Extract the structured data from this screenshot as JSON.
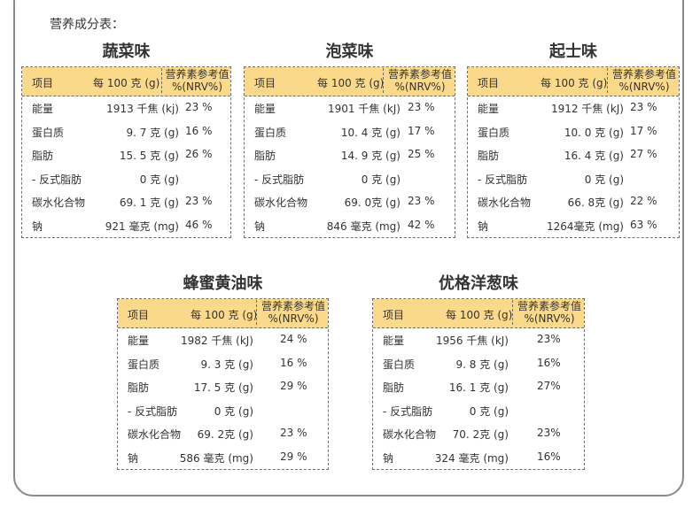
{
  "heading": "营养成分表：",
  "header": {
    "item": "项目",
    "per": "每 100 克 (g)",
    "nrv_line1": "营养素参考值",
    "nrv_line2": "%(NRV%)"
  },
  "panels": [
    {
      "title": "蔬菜味",
      "rows": [
        {
          "name": "能量",
          "value": "1913 千焦 (kj)",
          "nrv": "23 %"
        },
        {
          "name": "蛋白质",
          "value": "9. 7 克 (g)",
          "nrv": "16 %"
        },
        {
          "name": "脂肪",
          "value": "15. 5 克 (g)",
          "nrv": "26 %"
        },
        {
          "name": "- 反式脂肪",
          "value": "0 克 (g)",
          "nrv": ""
        },
        {
          "name": "碳水化合物",
          "value": "69. 1 克 (g)",
          "nrv": "23 %"
        },
        {
          "name": "钠",
          "value": "921 毫克 (mg)",
          "nrv": "46 %"
        }
      ]
    },
    {
      "title": "泡菜味",
      "rows": [
        {
          "name": "能量",
          "value": "1901 千焦 (kJ)",
          "nrv": "23 %"
        },
        {
          "name": "蛋白质",
          "value": "10. 4 克 (g)",
          "nrv": "17 %"
        },
        {
          "name": "脂肪",
          "value": "14. 9 克 (g)",
          "nrv": "25 %"
        },
        {
          "name": "- 反式脂肪",
          "value": "0 克 (g)",
          "nrv": ""
        },
        {
          "name": "碳水化合物",
          "value": "69. 0克 (g)",
          "nrv": "23 %"
        },
        {
          "name": "钠",
          "value": "846 毫克 (mg)",
          "nrv": "42 %"
        }
      ]
    },
    {
      "title": "起士味",
      "rows": [
        {
          "name": "能量",
          "value": "1912 千焦 (kJ)",
          "nrv": "23 %"
        },
        {
          "name": "蛋白质",
          "value": "10. 0 克 (g)",
          "nrv": "17 %"
        },
        {
          "name": "脂肪",
          "value": "16. 4 克 (g)",
          "nrv": "27 %"
        },
        {
          "name": "- 反式脂肪",
          "value": "0 克 (g)",
          "nrv": ""
        },
        {
          "name": "碳水化合物",
          "value": "66. 8克 (g)",
          "nrv": "22 %"
        },
        {
          "name": "钠",
          "value": "1264毫克 (mg)",
          "nrv": "63 %"
        }
      ]
    },
    {
      "title": "蜂蜜黄油味",
      "rows": [
        {
          "name": "能量",
          "value": "1982 千焦 (kJ)",
          "nrv": "24 %"
        },
        {
          "name": "蛋白质",
          "value": "9. 3 克 (g)",
          "nrv": "16 %"
        },
        {
          "name": "脂肪",
          "value": "17. 5 克 (g)",
          "nrv": "29 %"
        },
        {
          "name": "- 反式脂肪",
          "value": "0 克 (g)",
          "nrv": ""
        },
        {
          "name": "碳水化合物",
          "value": "69. 2克 (g)",
          "nrv": "23 %"
        },
        {
          "name": "钠",
          "value": "586 毫克 (mg)",
          "nrv": "29 %"
        }
      ]
    },
    {
      "title": "优格洋葱味",
      "rows": [
        {
          "name": "能量",
          "value": "1956 千焦 (kJ)",
          "nrv": "23%"
        },
        {
          "name": "蛋白质",
          "value": "9. 8 克 (g)",
          "nrv": "16%"
        },
        {
          "name": "脂肪",
          "value": "16. 1 克 (g)",
          "nrv": "27%"
        },
        {
          "name": "- 反式脂肪",
          "value": "0 克 (g)",
          "nrv": ""
        },
        {
          "name": "碳水化合物",
          "value": "70. 2克 (g)",
          "nrv": "23%"
        },
        {
          "name": "钠",
          "value": "324 毫克 (mg)",
          "nrv": "16%"
        }
      ]
    }
  ]
}
